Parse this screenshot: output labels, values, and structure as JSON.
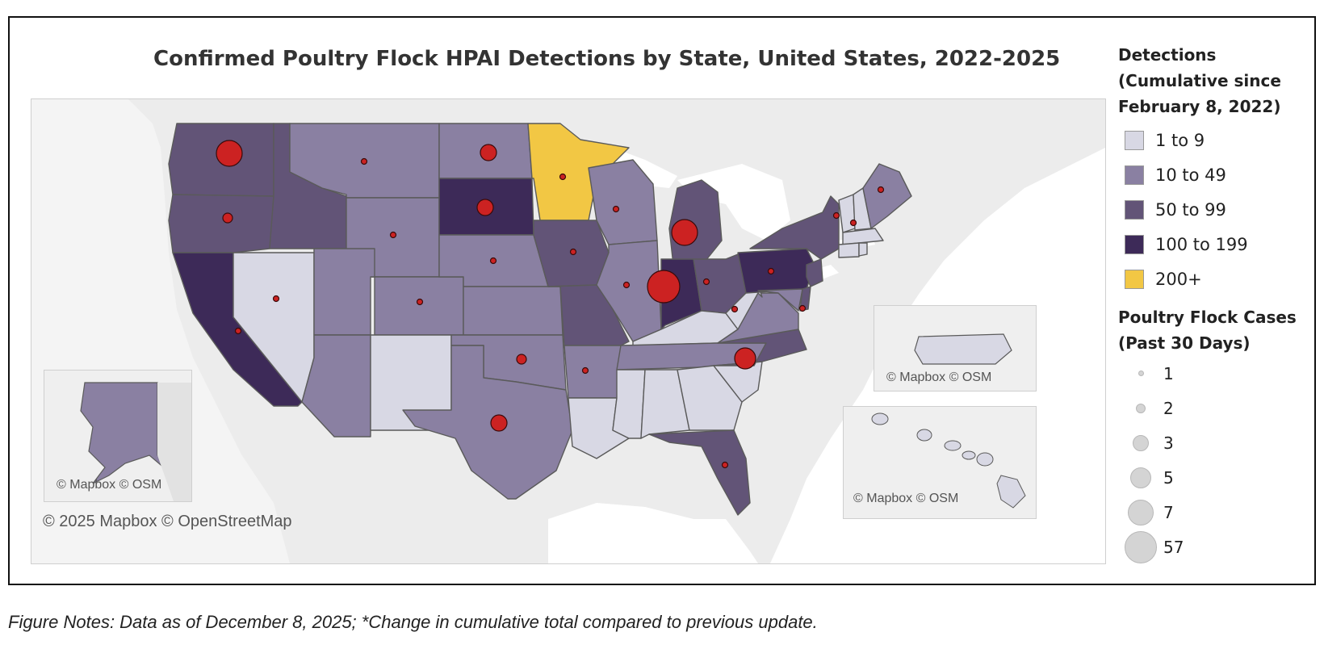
{
  "title": "Confirmed Poultry Flock HPAI Detections by State, United States, 2022-2025",
  "notes": "Figure Notes: Data as of December 8, 2025; *Change in cumulative total compared to previous update.",
  "credits": {
    "main": "© 2025 Mapbox © OpenStreetMap",
    "alaska": "© Mapbox © OSM",
    "puerto_rico": "© Mapbox © OSM",
    "hawaii": "© Mapbox © OSM"
  },
  "legend": {
    "detections_title_1": "Detections",
    "detections_title_2": "(Cumulative since",
    "detections_title_3": "February 8, 2022)",
    "bins": [
      {
        "label": "1 to 9",
        "color": "#d8d8e4"
      },
      {
        "label": "10 to 49",
        "color": "#8a80a2"
      },
      {
        "label": "50 to 99",
        "color": "#625477"
      },
      {
        "label": "100 to 199",
        "color": "#3d2a58"
      },
      {
        "label": "200+",
        "color": "#f2c744"
      }
    ],
    "cases_title_1": "Poultry Flock Cases",
    "cases_title_2": "(Past 30 Days)",
    "cases": [
      {
        "label": "1",
        "value": 1
      },
      {
        "label": "2",
        "value": 2
      },
      {
        "label": "3",
        "value": 3
      },
      {
        "label": "5",
        "value": 5
      },
      {
        "label": "7",
        "value": 7
      },
      {
        "label": "57",
        "value": 57
      }
    ]
  },
  "colors": {
    "bin_1_9": "#d8d8e4",
    "bin_10_49": "#8a80a2",
    "bin_50_99": "#625477",
    "bin_100_199": "#3d2a58",
    "bin_200_plus": "#f2c744",
    "case_marker": "#cc2222",
    "land_background": "#e9e9e9",
    "water": "#ffffff"
  },
  "chart_data": {
    "type": "map",
    "state_bins": {
      "WA": "50 to 99",
      "OR": "50 to 99",
      "CA": "100 to 199",
      "ID": "50 to 99",
      "NV": "1 to 9",
      "MT": "10 to 49",
      "WY": "10 to 49",
      "UT": "10 to 49",
      "AZ": "10 to 49",
      "CO": "10 to 49",
      "NM": "1 to 9",
      "ND": "10 to 49",
      "SD": "100 to 199",
      "NE": "10 to 49",
      "KS": "10 to 49",
      "OK": "10 to 49",
      "TX": "10 to 49",
      "MN": "200+",
      "IA": "50 to 99",
      "MO": "50 to 99",
      "AR": "10 to 49",
      "LA": "1 to 9",
      "WI": "10 to 49",
      "IL": "10 to 49",
      "MI": "50 to 99",
      "IN": "100 to 199",
      "OH": "50 to 99",
      "KY": "1 to 9",
      "TN": "10 to 49",
      "MS": "1 to 9",
      "AL": "1 to 9",
      "GA": "1 to 9",
      "FL": "50 to 99",
      "SC": "1 to 9",
      "NC": "50 to 99",
      "VA": "10 to 49",
      "WV": "1 to 9",
      "PA": "100 to 199",
      "NY": "50 to 99",
      "NJ": "50 to 99",
      "DE": "50 to 99",
      "MD": "10 to 49",
      "VT": "1 to 9",
      "NH": "1 to 9",
      "ME": "10 to 49",
      "MA": "1 to 9",
      "CT": "1 to 9",
      "RI": "1 to 9",
      "AK": "10 to 49",
      "HI": "1 to 9",
      "PR": "1 to 9"
    },
    "cases_past_30_days_by_state": {
      "WA": 7,
      "OR": 2,
      "CA": 1,
      "MT": 1,
      "WY": 1,
      "NV": 1,
      "CO": 1,
      "ND": 3,
      "SD": 3,
      "MN": 1,
      "NE": 1,
      "IA": 1,
      "WI": 1,
      "MI": 7,
      "IL": 1,
      "IN": 57,
      "OH": 1,
      "PA": 1,
      "OK": 2,
      "AR": 1,
      "TX": 3,
      "NC": 5,
      "WV": 1,
      "MD": 1,
      "VT": 1,
      "NH": 1,
      "ME": 1,
      "FL": 1
    }
  }
}
